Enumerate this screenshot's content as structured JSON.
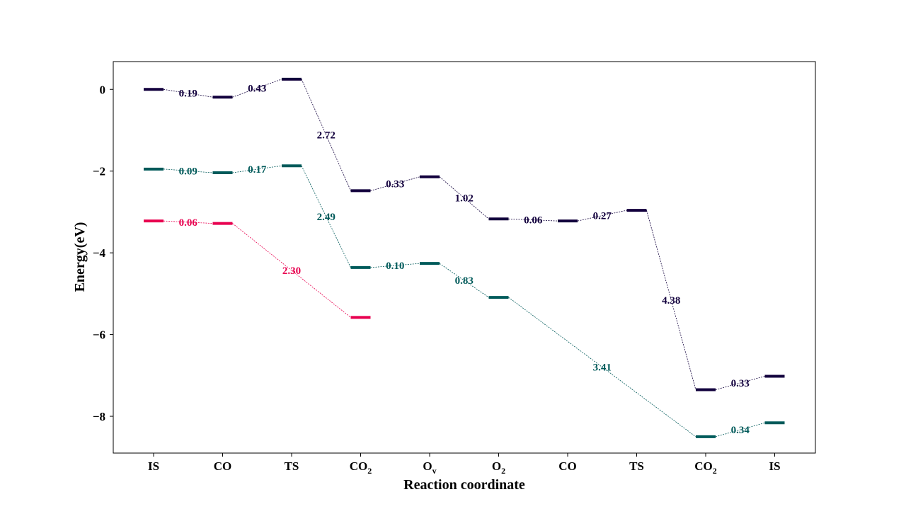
{
  "chart_data": {
    "type": "line",
    "xlabel": "Reaction coordinate",
    "ylabel": "Energy(eV)",
    "ylim": [
      -8.9,
      0.68
    ],
    "yticks": [
      0,
      -2,
      -4,
      -6,
      -8
    ],
    "ytick_labels": [
      "0",
      "−2",
      "−4",
      "−6",
      "−8"
    ],
    "categories": [
      {
        "main": "IS",
        "sub": ""
      },
      {
        "main": "CO",
        "sub": ""
      },
      {
        "main": "TS",
        "sub": ""
      },
      {
        "main": "CO",
        "sub": "2"
      },
      {
        "main": "O",
        "sub": "v"
      },
      {
        "main": "O",
        "sub": "2"
      },
      {
        "main": "CO",
        "sub": ""
      },
      {
        "main": "TS",
        "sub": ""
      },
      {
        "main": "CO",
        "sub": "2"
      },
      {
        "main": "IS",
        "sub": ""
      }
    ],
    "grid": false,
    "series": [
      {
        "color": "#12003d",
        "values": [
          0.0,
          -0.19,
          0.25,
          -2.48,
          -2.14,
          -3.17,
          -3.22,
          -2.96,
          -7.35,
          -7.02
        ],
        "step_labels": [
          "0.19",
          "0.43",
          "2.72",
          "0.33",
          "1.02",
          "0.06",
          "0.27",
          "4.38",
          "0.33"
        ]
      },
      {
        "color": "#005a5a",
        "values": [
          -1.95,
          -2.04,
          -1.87,
          -4.36,
          -4.26,
          -5.09,
          null,
          null,
          -8.5,
          -8.16
        ],
        "step_labels": [
          "0.09",
          "0.17",
          "2.49",
          "0.10",
          "0.83",
          "3.41",
          "0.34"
        ]
      },
      {
        "color": "#e8004f",
        "values": [
          -3.22,
          -3.28,
          null,
          -5.58,
          null,
          null,
          null,
          null,
          null,
          null
        ],
        "step_labels": [
          "0.06",
          "2.30"
        ]
      }
    ]
  }
}
